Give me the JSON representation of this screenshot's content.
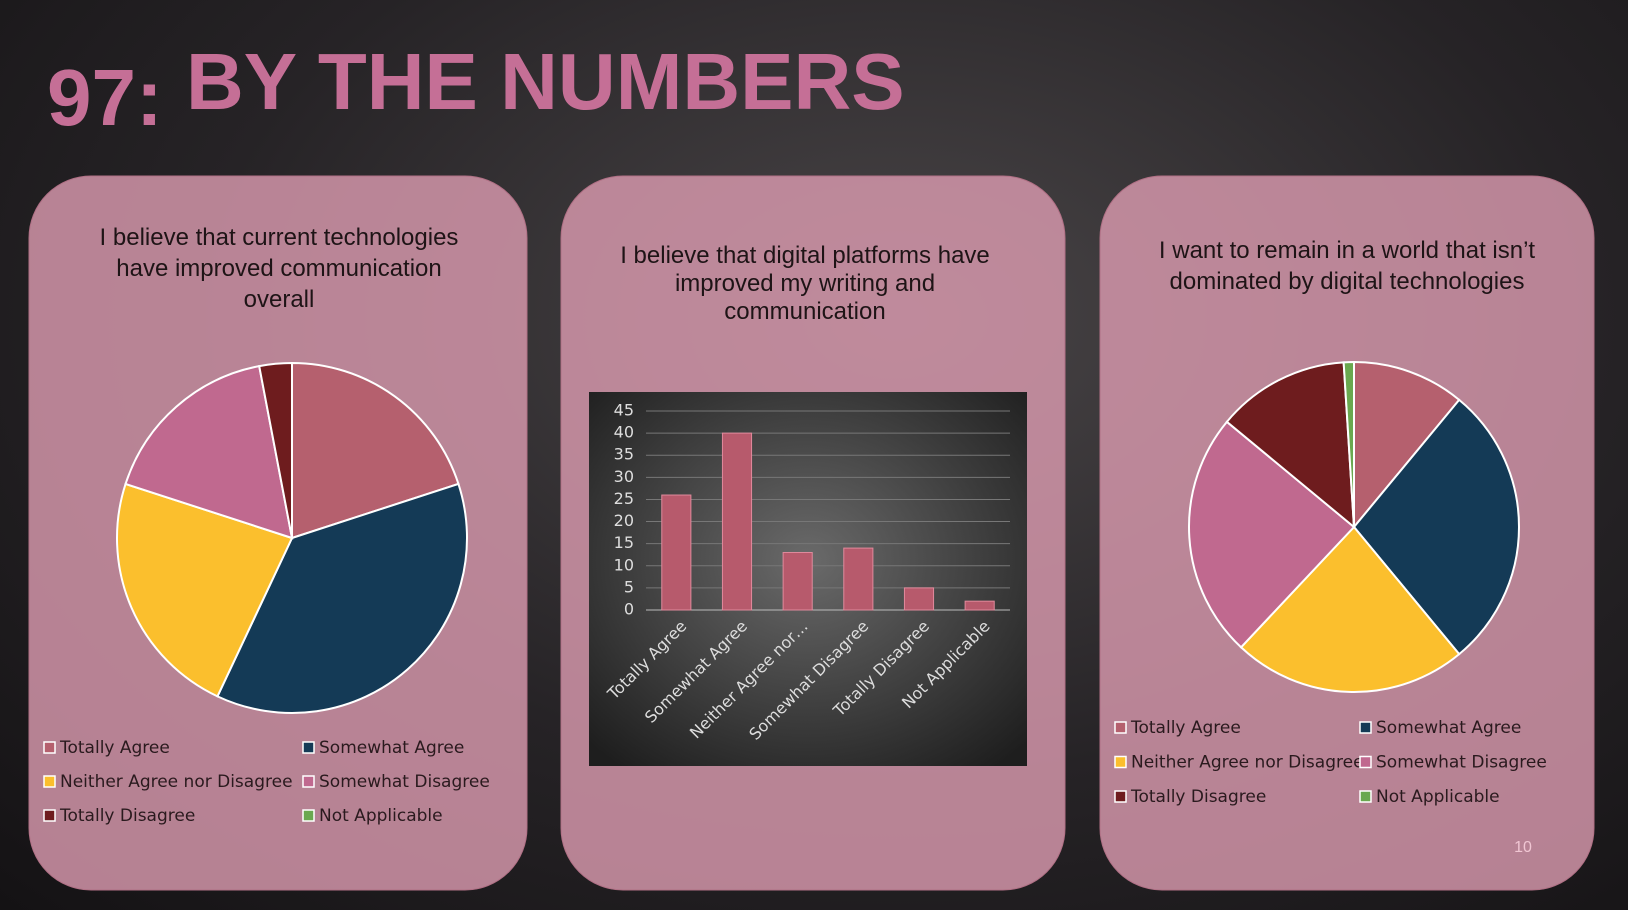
{
  "title_number": "97:",
  "title": "BY THE NUMBERS",
  "page_number": "10",
  "chart_data": [
    {
      "type": "pie",
      "title": "I believe  that current technologies have improved communication overall",
      "categories": [
        "Totally Agree",
        "Somewhat Agree",
        "Neither Agree nor Disagree",
        "Somewhat Disagree",
        "Totally Disagree",
        "Not Applicable"
      ],
      "values": [
        20,
        37,
        23,
        17,
        3,
        0
      ],
      "colors": [
        "#b5606e",
        "#143a56",
        "#fbbf2d",
        "#c0698f",
        "#6e1c1e",
        "#6aa84f"
      ]
    },
    {
      "type": "bar",
      "title": "I believe that digital platforms have improved my writing and communication",
      "categories": [
        "Totally Agree",
        "Somewhat Agree",
        "Neither Agree nor…",
        "Somewhat Disagree",
        "Totally Disagree",
        "Not Applicable"
      ],
      "values": [
        26,
        40,
        13,
        14,
        5,
        2
      ],
      "color": "#b75a6c",
      "ylim": [
        0,
        45
      ],
      "yticks": [
        0,
        5,
        10,
        15,
        20,
        25,
        30,
        35,
        40,
        45
      ],
      "grid": true
    },
    {
      "type": "pie",
      "title": "I want to remain in a world that isn’t dominated by digital technologies",
      "categories": [
        "Totally Agree",
        "Somewhat Agree",
        "Neither Agree nor Disagree",
        "Somewhat Disagree",
        "Totally Disagree",
        "Not Applicable"
      ],
      "values": [
        11,
        28,
        23,
        24,
        13,
        1
      ],
      "colors": [
        "#b5606e",
        "#143a56",
        "#fbbf2d",
        "#c0698f",
        "#6e1c1e",
        "#6aa84f"
      ]
    }
  ]
}
